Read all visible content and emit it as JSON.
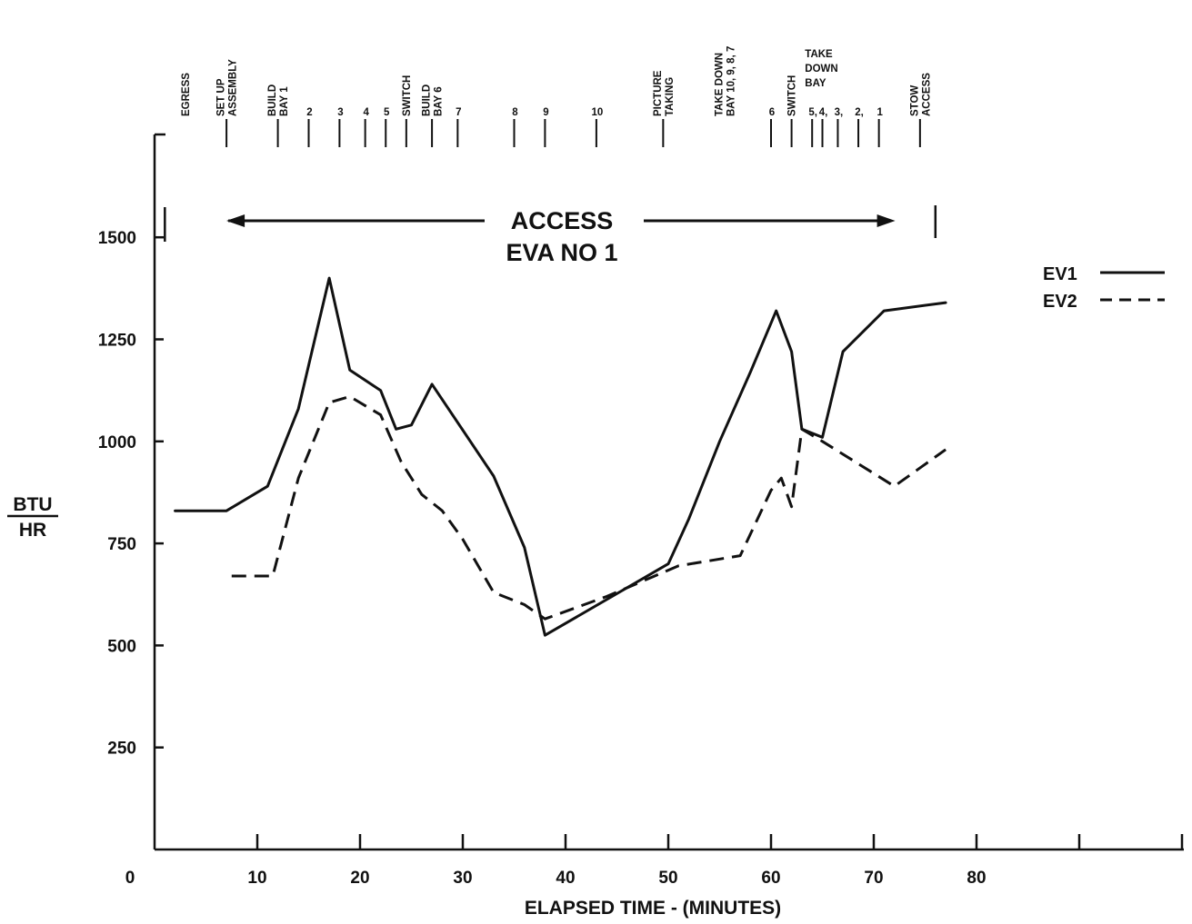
{
  "chart_data": {
    "type": "line",
    "xlabel": "ELAPSED TIME - (MINUTES)",
    "ylabel_top": "BTU",
    "ylabel_bottom": "HR",
    "xlim": [
      0,
      100
    ],
    "ylim": [
      0,
      1750
    ],
    "x_ticks": [
      0,
      10,
      20,
      30,
      40,
      50,
      60,
      70,
      80
    ],
    "y_ticks": [
      250,
      500,
      750,
      1000,
      1250,
      1500
    ],
    "grid": false,
    "legend_position": "right",
    "annotation": {
      "line1": "ACCESS",
      "line2": "EVA NO 1",
      "x_start": 7,
      "x_end": 72,
      "left_marker_x": 1,
      "right_marker_x": 76,
      "y": 1550
    },
    "series": [
      {
        "name": "EV1",
        "style": "solid",
        "color": "#111111",
        "points": [
          [
            2,
            830
          ],
          [
            7,
            830
          ],
          [
            11,
            890
          ],
          [
            14,
            1080
          ],
          [
            17,
            1400
          ],
          [
            19,
            1175
          ],
          [
            22,
            1125
          ],
          [
            23.5,
            1030
          ],
          [
            25,
            1040
          ],
          [
            27,
            1140
          ],
          [
            33,
            915
          ],
          [
            36,
            740
          ],
          [
            38,
            525
          ],
          [
            50,
            700
          ],
          [
            52,
            810
          ],
          [
            55,
            1000
          ],
          [
            58,
            1170
          ],
          [
            60.5,
            1320
          ],
          [
            62,
            1220
          ],
          [
            63,
            1030
          ],
          [
            65,
            1010
          ],
          [
            67,
            1220
          ],
          [
            71,
            1320
          ],
          [
            77,
            1340
          ]
        ]
      },
      {
        "name": "EV2",
        "style": "dashed",
        "color": "#111111",
        "points": [
          [
            7.5,
            670
          ],
          [
            11.5,
            670
          ],
          [
            14,
            910
          ],
          [
            17,
            1095
          ],
          [
            19,
            1110
          ],
          [
            22,
            1065
          ],
          [
            24,
            950
          ],
          [
            26,
            870
          ],
          [
            28,
            830
          ],
          [
            30,
            760
          ],
          [
            33,
            630
          ],
          [
            36,
            600
          ],
          [
            38,
            565
          ],
          [
            44,
            620
          ],
          [
            51,
            695
          ],
          [
            57,
            720
          ],
          [
            60,
            880
          ],
          [
            61,
            910
          ],
          [
            62,
            840
          ],
          [
            63,
            1030
          ],
          [
            65,
            1000
          ],
          [
            72,
            890
          ],
          [
            77,
            980
          ]
        ]
      }
    ],
    "events": [
      {
        "x": 3,
        "lines": [
          "EGRESS"
        ],
        "mark": false
      },
      {
        "x": 7,
        "lines": [
          "SET UP",
          "ASSEMBLY"
        ],
        "mark": true
      },
      {
        "x": 12,
        "lines": [
          "BUILD",
          "BAY 1"
        ],
        "mark": true
      },
      {
        "x": 15,
        "lines": [
          "2"
        ],
        "mark": true
      },
      {
        "x": 18,
        "lines": [
          "3"
        ],
        "mark": true
      },
      {
        "x": 20.5,
        "lines": [
          "4"
        ],
        "mark": true
      },
      {
        "x": 22.5,
        "lines": [
          "5"
        ],
        "mark": true
      },
      {
        "x": 24.5,
        "lines": [
          "SWITCH"
        ],
        "mark": true
      },
      {
        "x": 27,
        "lines": [
          "BUILD",
          "BAY 6"
        ],
        "mark": true
      },
      {
        "x": 29.5,
        "lines": [
          "7"
        ],
        "mark": true
      },
      {
        "x": 35,
        "lines": [
          "8"
        ],
        "mark": true
      },
      {
        "x": 38,
        "lines": [
          "9"
        ],
        "mark": true
      },
      {
        "x": 43,
        "lines": [
          "10"
        ],
        "mark": true
      },
      {
        "x": 49.5,
        "lines": [
          "PICTURE",
          "TAKING"
        ],
        "mark": true
      },
      {
        "x": 55.5,
        "lines": [
          "TAKE DOWN",
          "BAY 10, 9, 8, 7"
        ],
        "mark": false
      },
      {
        "x": 60,
        "lines": [
          "6"
        ],
        "mark": true
      },
      {
        "x": 62,
        "lines": [
          "SWITCH"
        ],
        "mark": true
      },
      {
        "x": 64,
        "lines": [
          "5,"
        ],
        "mark": true
      },
      {
        "x": 65,
        "lines": [
          "4,"
        ],
        "mark": true
      },
      {
        "x": 66.5,
        "lines": [
          "3,"
        ],
        "mark": true
      },
      {
        "x": 68.5,
        "lines": [
          "2,"
        ],
        "mark": true
      },
      {
        "x": 70.5,
        "lines": [
          "1"
        ],
        "mark": true
      },
      {
        "x": 74.5,
        "lines": [
          "STOW",
          "ACCESS"
        ],
        "mark": true
      }
    ],
    "take_down_bay_label": [
      "TAKE",
      "DOWN",
      "BAY"
    ]
  }
}
